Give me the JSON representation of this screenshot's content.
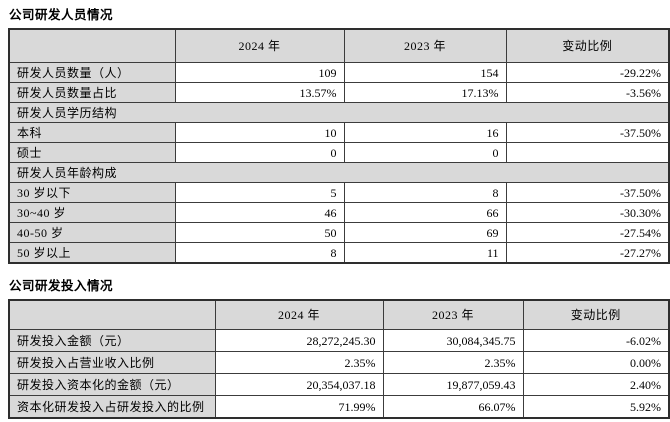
{
  "sections": {
    "personnel_title": "公司研发人员情况",
    "investment_title": "公司研发投入情况"
  },
  "personnel_table": {
    "headers": {
      "blank": "",
      "y2024": "2024 年",
      "y2023": "2023 年",
      "change": "变动比例"
    },
    "rows": [
      {
        "type": "data",
        "label": "研发人员数量（人）",
        "v2024": "109",
        "v2023": "154",
        "change": "-29.22%"
      },
      {
        "type": "data",
        "label": "研发人员数量占比",
        "v2024": "13.57%",
        "v2023": "17.13%",
        "change": "-3.56%"
      },
      {
        "type": "section",
        "label": "研发人员学历结构",
        "v2024": "",
        "v2023": "",
        "change": ""
      },
      {
        "type": "data",
        "label": "本科",
        "v2024": "10",
        "v2023": "16",
        "change": "-37.50%"
      },
      {
        "type": "data",
        "label": "硕士",
        "v2024": "0",
        "v2023": "0",
        "change": ""
      },
      {
        "type": "section",
        "label": "研发人员年龄构成",
        "v2024": "",
        "v2023": "",
        "change": ""
      },
      {
        "type": "data",
        "label": "30 岁以下",
        "v2024": "5",
        "v2023": "8",
        "change": "-37.50%"
      },
      {
        "type": "data",
        "label": "30~40 岁",
        "v2024": "46",
        "v2023": "66",
        "change": "-30.30%"
      },
      {
        "type": "data",
        "label": "40-50 岁",
        "v2024": "50",
        "v2023": "69",
        "change": "-27.54%"
      },
      {
        "type": "data",
        "label": "50 岁以上",
        "v2024": "8",
        "v2023": "11",
        "change": "-27.27%"
      }
    ]
  },
  "investment_table": {
    "headers": {
      "blank": "",
      "y2024": "2024 年",
      "y2023": "2023 年",
      "change": "变动比例"
    },
    "rows": [
      {
        "type": "data",
        "label": "研发投入金额（元）",
        "v2024": "28,272,245.30",
        "v2023": "30,084,345.75",
        "change": "-6.02%"
      },
      {
        "type": "data",
        "label": "研发投入占营业收入比例",
        "v2024": "2.35%",
        "v2023": "2.35%",
        "change": "0.00%"
      },
      {
        "type": "data",
        "label": "研发投入资本化的金额（元）",
        "v2024": "20,354,037.18",
        "v2023": "19,877,059.43",
        "change": "2.40%"
      },
      {
        "type": "data",
        "label": "资本化研发投入占研发投入的比例",
        "v2024": "71.99%",
        "v2023": "66.07%",
        "change": "5.92%"
      }
    ]
  },
  "colors": {
    "cell_gray": "#d9d9d9",
    "border": "#3c3c3c",
    "text": "#000000"
  }
}
